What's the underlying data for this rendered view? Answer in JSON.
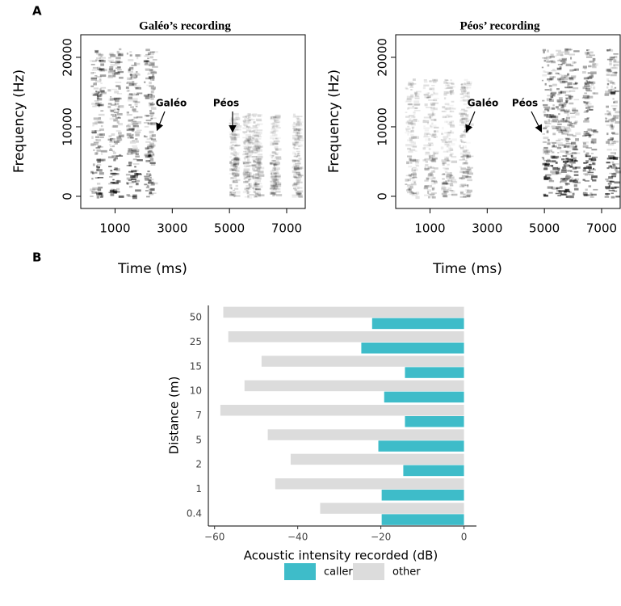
{
  "chart_data": [
    {
      "type": "spectrogram",
      "panel": "A",
      "title": "Galéo’s recording",
      "x_label": "Time (ms)",
      "y_label": "Frequency (Hz)",
      "xlim": [
        -200,
        7650
      ],
      "xticks": [
        1000,
        3000,
        5000,
        7000
      ],
      "ylim": [
        -1750,
        23250
      ],
      "yticks": [
        0,
        10000,
        20000
      ],
      "annotations": [
        "Galéo",
        "Péos"
      ]
    },
    {
      "type": "spectrogram",
      "title": "Péos’ recording",
      "x_label": "Time (ms)",
      "y_label": "Frequency (Hz)",
      "xlim": [
        -200,
        7650
      ],
      "xticks": [
        1000,
        3000,
        5000,
        7000
      ],
      "ylim": [
        -1750,
        23250
      ],
      "yticks": [
        0,
        10000,
        20000
      ],
      "annotations": [
        "Galéo",
        "Péos"
      ]
    },
    {
      "type": "hbar",
      "panel": "B",
      "x_label": "Acoustic intensity recorded (dB)",
      "y_label": "Distance (m)",
      "categories": [
        "50",
        "25",
        "15",
        "10",
        "7",
        "5",
        "2",
        "1",
        "0.4"
      ],
      "series": [
        {
          "name": "caller",
          "color": "#3ebcc9",
          "values": [
            -22.1,
            -24.7,
            -14.2,
            -19.2,
            -14.2,
            -20.6,
            -14.6,
            -19.8,
            -19.8
          ]
        },
        {
          "name": "other",
          "color": "#dcdcdc",
          "values": [
            -57.9,
            -56.7,
            -48.7,
            -52.8,
            -58.6,
            -47.2,
            -41.7,
            -45.4,
            -34.6
          ]
        }
      ],
      "xlim": [
        -61.5,
        3
      ],
      "xticks": [
        {
          "value": -60,
          "label": "−60"
        },
        {
          "value": -40,
          "label": "−40"
        },
        {
          "value": -20,
          "label": "−20"
        },
        0
      ],
      "legend": "bottom"
    }
  ]
}
